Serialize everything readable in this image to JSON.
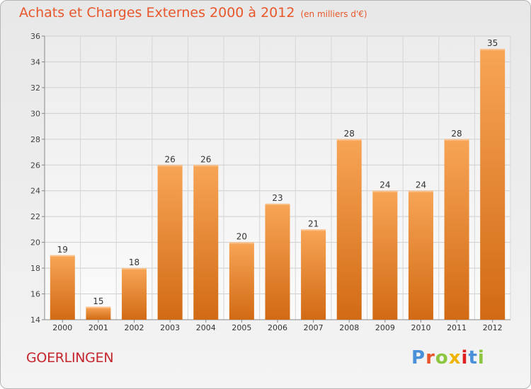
{
  "header": {
    "title": "Achats et Charges Externes 2000 à 2012",
    "unit": "(en milliers d'€)"
  },
  "footer": {
    "commune": "GOERLINGEN",
    "logo_text": "Proxiti"
  },
  "colors": {
    "title": "#e8572b",
    "commune": "#c4262e",
    "bar_light": "#f7a556",
    "bar_dark": "#d26a14",
    "logo": [
      "#4a90d9",
      "#e8572b",
      "#8cc63f",
      "#f0b400",
      "#e02020",
      "#4a90d9",
      "#8cc63f"
    ]
  },
  "chart_data": {
    "type": "bar",
    "categories": [
      "2000",
      "2001",
      "2002",
      "2003",
      "2004",
      "2005",
      "2006",
      "2007",
      "2008",
      "2009",
      "2010",
      "2011",
      "2012"
    ],
    "values": [
      19,
      15,
      18,
      26,
      26,
      20,
      23,
      21,
      28,
      24,
      24,
      28,
      35
    ],
    "ylim": [
      14,
      36
    ],
    "yticks": [
      14,
      16,
      18,
      20,
      22,
      24,
      26,
      28,
      30,
      32,
      34,
      36
    ],
    "grid": true,
    "xlabel": "",
    "ylabel": ""
  }
}
